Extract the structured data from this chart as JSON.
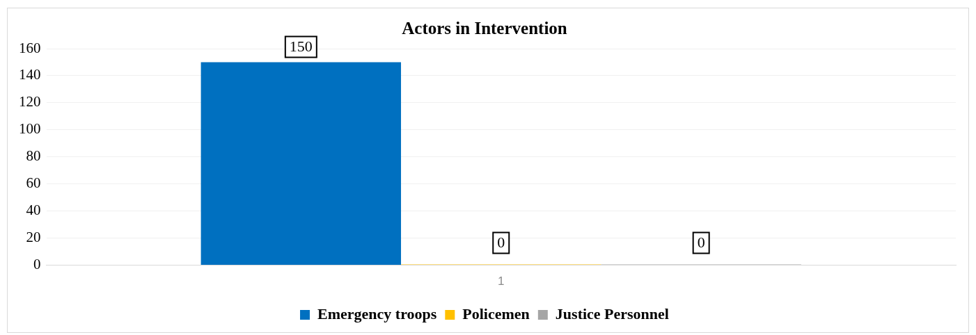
{
  "chart_data": {
    "type": "bar",
    "title": "Actors in Intervention",
    "categories": [
      "1"
    ],
    "series": [
      {
        "name": "Emergency troops",
        "color": "#0070c0",
        "values": [
          150
        ]
      },
      {
        "name": "Policemen",
        "color": "#ffc000",
        "values": [
          0
        ]
      },
      {
        "name": "Justice Personnel",
        "color": "#a5a5a5",
        "values": [
          0
        ]
      }
    ],
    "ylim": [
      0,
      160
    ],
    "yticks": [
      0,
      20,
      40,
      60,
      80,
      100,
      120,
      140,
      160
    ],
    "grid": "y",
    "legend": "bottom",
    "data_labels": true
  }
}
